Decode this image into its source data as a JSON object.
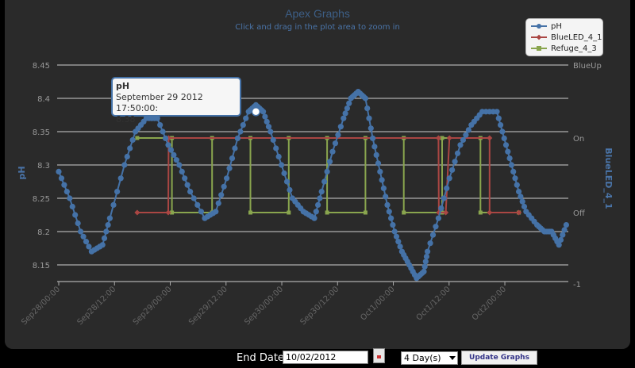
{
  "chart_data": {
    "type": "line",
    "title": "Apex Graphs",
    "subtitle": "Click and drag in the plot area to zoom in",
    "ylabel_left": "pH",
    "ylabel_right": "BlueLED_4_1",
    "y_ticks_left": [
      "8.45",
      "8.4",
      "8.35",
      "8.3",
      "8.25",
      "8.2",
      "8.15"
    ],
    "y_left_range": [
      8.125,
      8.45
    ],
    "y_ticks_right": [
      "BlueUp",
      "On",
      "Off",
      "-1"
    ],
    "x_ticks": [
      "Sep28/00:00",
      "Sep28/12:00",
      "Sep29/00:00",
      "Sep29/12:00",
      "Sep30/00:00",
      "Sep30/12:00",
      "Oct1/00:00",
      "Oct1/12:00",
      "Oct2/00:00"
    ],
    "x_range_hours": [
      0,
      110
    ],
    "grid": true,
    "legend_position": "top-right",
    "colors": {
      "pH": "#4572a7",
      "BlueLED_4_1": "#aa4643",
      "Refuge_4_3": "#89a54e",
      "background": "#2a2a2a",
      "grid": "#cfcfcf"
    },
    "series": [
      {
        "name": "pH",
        "anchors": [
          [
            0,
            8.29
          ],
          [
            3,
            8.25
          ],
          [
            6,
            8.2
          ],
          [
            9,
            8.17
          ],
          [
            12,
            8.18
          ],
          [
            14,
            8.22
          ],
          [
            18,
            8.3
          ],
          [
            21,
            8.35
          ],
          [
            24,
            8.37
          ],
          [
            27,
            8.37
          ],
          [
            30,
            8.33
          ],
          [
            33,
            8.3
          ],
          [
            36,
            8.26
          ],
          [
            40,
            8.22
          ],
          [
            43,
            8.23
          ],
          [
            46,
            8.28
          ],
          [
            49,
            8.34
          ],
          [
            52,
            8.38
          ],
          [
            54,
            8.39
          ],
          [
            56,
            8.38
          ],
          [
            58,
            8.35
          ],
          [
            61,
            8.3
          ],
          [
            64,
            8.25
          ],
          [
            67,
            8.23
          ],
          [
            70,
            8.22
          ],
          [
            72,
            8.26
          ],
          [
            75,
            8.32
          ],
          [
            78,
            8.37
          ],
          [
            80,
            8.4
          ],
          [
            82,
            8.41
          ],
          [
            84,
            8.4
          ],
          [
            86,
            8.34
          ],
          [
            88,
            8.29
          ],
          [
            90,
            8.24
          ],
          [
            92,
            8.2
          ],
          [
            94,
            8.17
          ],
          [
            96,
            8.15
          ],
          [
            98,
            8.13
          ],
          [
            100,
            8.14
          ],
          [
            101,
            8.17
          ],
          [
            104,
            8.22
          ],
          [
            107,
            8.28
          ],
          [
            110,
            8.33
          ],
          [
            113,
            8.36
          ],
          [
            116,
            8.38
          ],
          [
            120,
            8.38
          ],
          [
            122,
            8.34
          ],
          [
            124,
            8.3
          ],
          [
            126,
            8.26
          ],
          [
            128,
            8.23
          ],
          [
            131,
            8.21
          ],
          [
            133,
            8.2
          ],
          [
            135,
            8.2
          ],
          [
            137,
            8.18
          ],
          [
            139,
            8.21
          ]
        ]
      },
      {
        "name": "BlueLED_4_1",
        "steps": [
          [
            21.5,
            "Off"
          ],
          [
            30,
            "Off"
          ],
          [
            30.1,
            "On"
          ],
          [
            104,
            "On"
          ],
          [
            104.1,
            "Off"
          ],
          [
            106,
            "Off"
          ],
          [
            107,
            "On"
          ],
          [
            118,
            "On"
          ],
          [
            118,
            "Off"
          ],
          [
            126,
            "Off"
          ]
        ]
      },
      {
        "name": "Refuge_4_3",
        "steps": [
          [
            21.5,
            "On"
          ],
          [
            31,
            "On"
          ],
          [
            31,
            "Off"
          ],
          [
            42,
            "Off"
          ],
          [
            42,
            "On"
          ],
          [
            52.5,
            "On"
          ],
          [
            52.5,
            "Off"
          ],
          [
            63,
            "Off"
          ],
          [
            63,
            "On"
          ],
          [
            73.5,
            "On"
          ],
          [
            73.5,
            "Off"
          ],
          [
            84,
            "Off"
          ],
          [
            84,
            "On"
          ],
          [
            94.5,
            "On"
          ],
          [
            94.5,
            "Off"
          ],
          [
            105,
            "Off"
          ],
          [
            105,
            "On"
          ],
          [
            115.5,
            "On"
          ],
          [
            115.5,
            "Off"
          ],
          [
            126,
            "Off"
          ]
        ]
      }
    ],
    "tooltip": {
      "series": "pH",
      "label": "September 29 2012 17:50:00:",
      "value": "8.38"
    }
  },
  "controls": {
    "end_date_label": "End Date",
    "end_date_value": "10/02/2012",
    "range_value": "4 Day(s)",
    "update_label": "Update Graphs"
  }
}
